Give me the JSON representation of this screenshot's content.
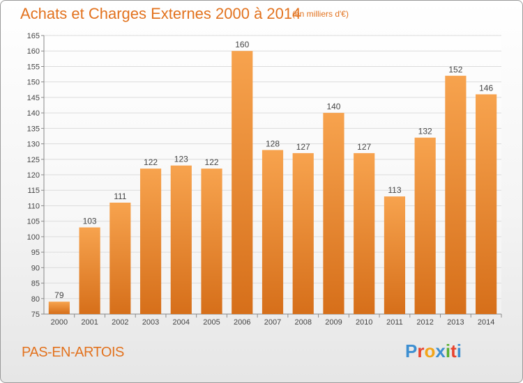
{
  "title": "Achats et Charges Externes 2000 à 2014",
  "subtitle": "(en milliers d'€)",
  "footer": {
    "city": "PAS-EN-ARTOIS",
    "logo": "Proxiti"
  },
  "colors": {
    "bar_top": "#f7a34e",
    "bar_bottom": "#d66f1a",
    "title": "#e2721e",
    "logo": [
      "#3d8fd1",
      "#e8432e",
      "#f2a51a",
      "#3d8fd1",
      "#5ab031",
      "#e8432e",
      "#3d8fd1"
    ]
  },
  "chart_data": {
    "type": "bar",
    "categories": [
      "2000",
      "2001",
      "2002",
      "2003",
      "2004",
      "2005",
      "2006",
      "2007",
      "2008",
      "2009",
      "2010",
      "2011",
      "2012",
      "2013",
      "2014"
    ],
    "values": [
      79,
      103,
      111,
      122,
      123,
      122,
      160,
      128,
      127,
      140,
      127,
      113,
      132,
      152,
      146
    ],
    "title": "Achats et Charges Externes 2000 à 2014",
    "xlabel": "",
    "ylabel": "",
    "ylim": [
      75,
      165
    ],
    "yticks": [
      75,
      80,
      85,
      90,
      95,
      100,
      105,
      110,
      115,
      120,
      125,
      130,
      135,
      140,
      145,
      150,
      155,
      160,
      165
    ],
    "grid": true,
    "legend": "none"
  }
}
